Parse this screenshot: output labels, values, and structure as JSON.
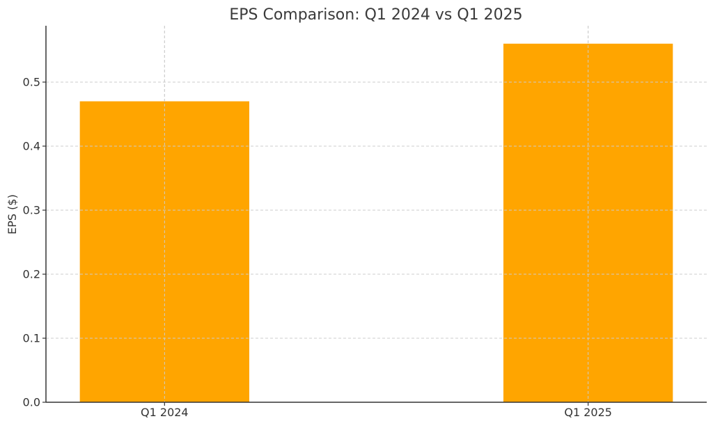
{
  "chart_data": {
    "type": "bar",
    "title": "EPS Comparison: Q1 2024 vs Q1 2025",
    "xlabel": "",
    "ylabel": "EPS ($)",
    "categories": [
      "Q1 2024",
      "Q1 2025"
    ],
    "values": [
      0.47,
      0.56
    ],
    "ylim": [
      0,
      0.588
    ],
    "yticks": [
      0.0,
      0.1,
      0.2,
      0.3,
      0.4,
      0.5
    ],
    "ytick_labels": [
      "0.0",
      "0.1",
      "0.2",
      "0.3",
      "0.4",
      "0.5"
    ],
    "grid": true,
    "bar_color": "#FFA500"
  }
}
